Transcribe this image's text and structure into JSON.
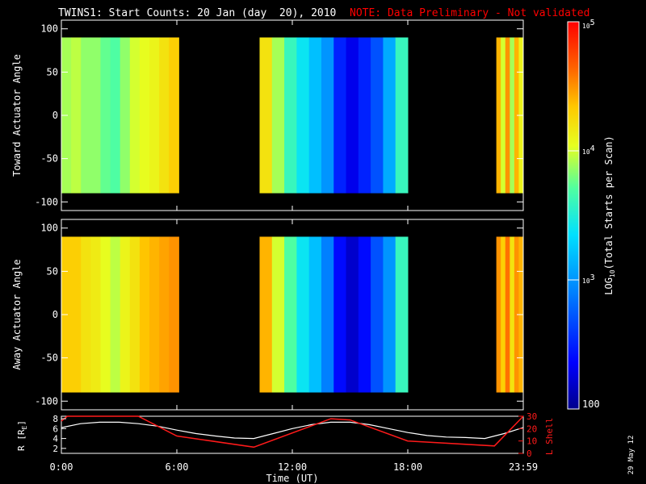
{
  "title": {
    "main": "TWINS1: Start Counts: 20 Jan (day  20), 2010",
    "note": "NOTE: Data Preliminary - Not validated"
  },
  "colors": {
    "background": "#000000",
    "axes": "#ffffff",
    "note": "#ff0000",
    "r_line": "#ffffff",
    "lshell_line": "#ff1a1a"
  },
  "date_stamp": "29 May 12",
  "chart_data": [
    {
      "type": "heatmap",
      "name": "toward",
      "ylabel": "Toward Actuator Angle",
      "ylim": [
        -110,
        110
      ],
      "yticks": [
        100,
        50,
        0,
        -50,
        -100
      ],
      "angle_range": [
        -90,
        90
      ],
      "xlim": [
        0,
        24
      ],
      "data_blocks": [
        {
          "start_hr": 0.0,
          "end_hr": 6.1,
          "log_counts": [
            3.9,
            3.95,
            3.85,
            3.85,
            3.75,
            3.7,
            3.85,
            4.0,
            4.05,
            4.1,
            4.2,
            4.3
          ]
        },
        {
          "start_hr": 10.3,
          "end_hr": 18.0,
          "log_counts": [
            4.2,
            3.9,
            3.6,
            3.4,
            3.2,
            3.0,
            2.5,
            2.3,
            2.5,
            2.7,
            3.1,
            3.6
          ]
        },
        {
          "start_hr": 22.6,
          "end_hr": 24.0,
          "log_counts": [
            4.4,
            4.0,
            4.5,
            3.9,
            4.4,
            4.1
          ]
        }
      ]
    },
    {
      "type": "heatmap",
      "name": "away",
      "ylabel": "Away Actuator Angle",
      "ylim": [
        -110,
        110
      ],
      "yticks": [
        100,
        50,
        0,
        -50,
        -100
      ],
      "angle_range": [
        -90,
        90
      ],
      "xlim": [
        0,
        24
      ],
      "data_blocks": [
        {
          "start_hr": 0.0,
          "end_hr": 6.1,
          "log_counts": [
            4.3,
            4.3,
            4.2,
            4.15,
            4.05,
            3.95,
            4.1,
            4.2,
            4.35,
            4.4,
            4.45,
            4.5
          ]
        },
        {
          "start_hr": 10.3,
          "end_hr": 18.0,
          "log_counts": [
            4.4,
            4.0,
            3.7,
            3.4,
            3.2,
            2.9,
            2.4,
            2.2,
            2.4,
            2.7,
            3.0,
            3.6
          ]
        },
        {
          "start_hr": 22.6,
          "end_hr": 24.0,
          "log_counts": [
            4.5,
            4.3,
            4.6,
            4.2,
            4.5,
            4.4
          ]
        }
      ]
    },
    {
      "type": "line",
      "name": "orbit",
      "ylabel_left": "R [R",
      "ylabel_left_sub": "E",
      "ylabel_left_end": "]",
      "ylabel_right": "L Shell",
      "xlabel": "Time (UT)",
      "xlim": [
        0,
        24
      ],
      "ylim_left": [
        1,
        8.5
      ],
      "yticks_left": [
        2,
        4,
        6,
        8
      ],
      "ylim_right": [
        0,
        30
      ],
      "yticks_right": [
        0,
        10,
        20,
        30
      ],
      "xticks": [
        0,
        6,
        12,
        18,
        24
      ],
      "xtick_labels": [
        "0:00",
        "6:00",
        "12:00",
        "18:00",
        "23:59"
      ],
      "series": [
        {
          "name": "R",
          "x": [
            0,
            1,
            2,
            3,
            4,
            5,
            6,
            7,
            8,
            9,
            10,
            11,
            12,
            13,
            14,
            15,
            16,
            17,
            18,
            19,
            20,
            21,
            22,
            23,
            24
          ],
          "y": [
            6.2,
            7.0,
            7.3,
            7.3,
            7.0,
            6.5,
            5.7,
            5.0,
            4.5,
            4.1,
            4.0,
            5.0,
            6.0,
            6.8,
            7.3,
            7.3,
            6.8,
            6.0,
            5.2,
            4.6,
            4.3,
            4.2,
            4.0,
            5.0,
            6.2
          ]
        },
        {
          "name": "L Shell",
          "x": [
            0,
            0.3,
            4,
            6,
            10,
            14,
            15,
            18,
            22.5,
            24
          ],
          "y": [
            26,
            30,
            30,
            14,
            5,
            28,
            27,
            10,
            6,
            30
          ]
        }
      ]
    },
    {
      "type": "colorbar",
      "label": "LOG",
      "label_sub": "10",
      "label_rest": "(Total Starts per Scan)",
      "range": [
        100,
        100000
      ],
      "ticks": [
        {
          "log": 2,
          "base": "",
          "exp": "",
          "label": "100"
        },
        {
          "log": 3,
          "base": "10",
          "exp": "3",
          "label": ""
        },
        {
          "log": 4,
          "base": "10",
          "exp": "4",
          "label": ""
        },
        {
          "log": 5,
          "base": "10",
          "exp": "5",
          "label": ""
        }
      ]
    }
  ]
}
